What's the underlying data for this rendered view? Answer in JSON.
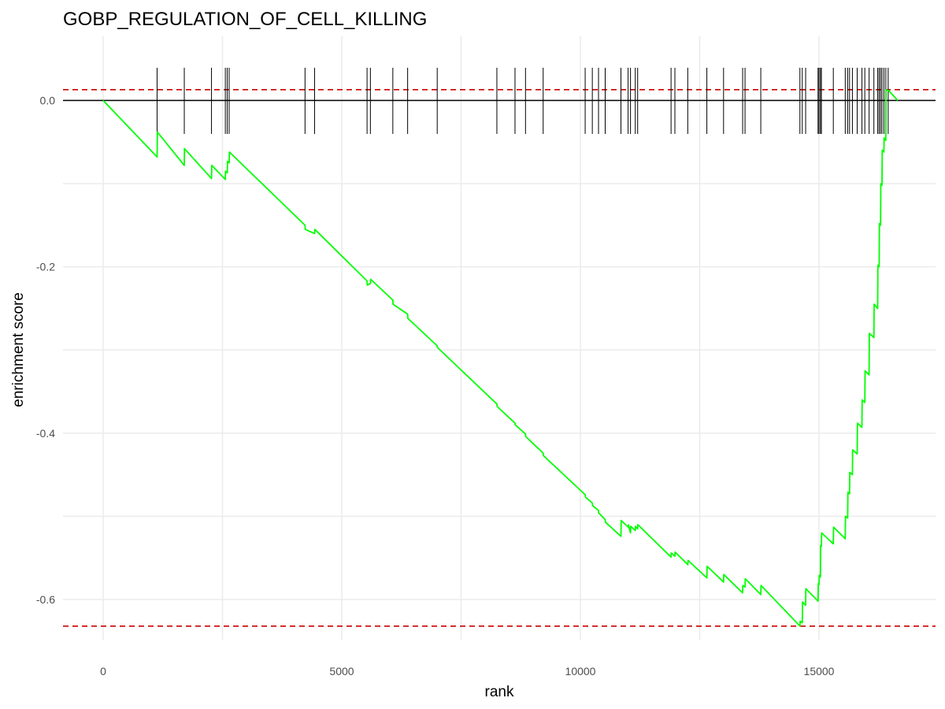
{
  "chart_data": {
    "type": "line",
    "title": "GOBP_REGULATION_OF_CELL_KILLING",
    "xlabel": "rank",
    "ylabel": "enrichment score",
    "xlim": [
      -1000,
      17500
    ],
    "ylim": [
      -0.65,
      0.08
    ],
    "x_ticks": [
      0,
      5000,
      10000,
      15000
    ],
    "x_tick_labels": [
      "0",
      "5000",
      "10000",
      "15000"
    ],
    "y_ticks": [
      0.0,
      -0.2,
      -0.4,
      -0.6
    ],
    "y_tick_labels": [
      "0.0",
      "-0.2",
      "-0.4",
      "-0.6"
    ],
    "grid": true,
    "legend": "none",
    "colors": {
      "curve": "#00ff00",
      "threshold": "#cc0000",
      "zero_line": "#000000",
      "hits": "#000000"
    },
    "reference_lines": {
      "zero": 0.0,
      "upper_dashed": 0.013,
      "lower_dashed": -0.632
    },
    "hit_ranks": [
      1130,
      1700,
      2270,
      2560,
      2600,
      2640,
      4230,
      4430,
      5530,
      5600,
      6070,
      6380,
      7000,
      8250,
      8630,
      8850,
      9220,
      10100,
      10250,
      10380,
      10520,
      10850,
      11000,
      11050,
      11150,
      11200,
      11900,
      11980,
      12250,
      12650,
      13000,
      13400,
      13450,
      13780,
      14600,
      14650,
      14720,
      14980,
      15000,
      15030,
      15050,
      15300,
      15550,
      15600,
      15640,
      15700,
      15800,
      15900,
      15960,
      16050,
      16150,
      16230,
      16260,
      16290,
      16320,
      16360,
      16400,
      16450
    ],
    "series": [
      {
        "x": [
          0,
          1130,
          1135,
          1700,
          1705,
          2270,
          2275,
          2560,
          2565,
          2600,
          2605,
          2640,
          2645,
          4230,
          4235,
          4430,
          4435,
          5530,
          5535,
          5600,
          5605,
          6070,
          6075,
          6380,
          6385,
          7000,
          7005,
          8250,
          8255,
          8630,
          8635,
          8850,
          8855,
          9220,
          9225,
          10100,
          10105,
          10250,
          10255,
          10380,
          10385,
          10520,
          10525,
          10850,
          10855,
          11000,
          11005,
          11050,
          11055,
          11150,
          11155,
          11200,
          11205,
          11900,
          11905,
          11980,
          11985,
          12250,
          12255,
          12650,
          12655,
          13000,
          13005,
          13400,
          13405,
          13450,
          13455,
          13780,
          13785,
          14600,
          14605,
          14650,
          14655,
          14720,
          14725,
          14980,
          14985,
          15000,
          15005,
          15030,
          15035,
          15050,
          15055,
          15300,
          15305,
          15550,
          15555,
          15600,
          15605,
          15640,
          15645,
          15700,
          15705,
          15800,
          15805,
          15900,
          15905,
          15960,
          15965,
          16050,
          16055,
          16150,
          16155,
          16230,
          16235,
          16260,
          16265,
          16290,
          16295,
          16320,
          16325,
          16360,
          16365,
          16400,
          16405,
          16450,
          16455,
          16650
        ],
        "y": [
          0.0,
          -0.068,
          -0.038,
          -0.078,
          -0.058,
          -0.094,
          -0.078,
          -0.095,
          -0.085,
          -0.087,
          -0.073,
          -0.075,
          -0.062,
          -0.15,
          -0.155,
          -0.16,
          -0.155,
          -0.217,
          -0.222,
          -0.22,
          -0.215,
          -0.24,
          -0.245,
          -0.257,
          -0.262,
          -0.295,
          -0.297,
          -0.365,
          -0.368,
          -0.388,
          -0.39,
          -0.401,
          -0.404,
          -0.424,
          -0.427,
          -0.474,
          -0.477,
          -0.484,
          -0.487,
          -0.493,
          -0.496,
          -0.504,
          -0.507,
          -0.524,
          -0.505,
          -0.513,
          -0.51,
          -0.52,
          -0.512,
          -0.517,
          -0.512,
          -0.515,
          -0.51,
          -0.549,
          -0.544,
          -0.548,
          -0.543,
          -0.558,
          -0.553,
          -0.574,
          -0.56,
          -0.579,
          -0.57,
          -0.592,
          -0.583,
          -0.585,
          -0.575,
          -0.594,
          -0.583,
          -0.632,
          -0.626,
          -0.628,
          -0.603,
          -0.607,
          -0.587,
          -0.602,
          -0.581,
          -0.582,
          -0.571,
          -0.573,
          -0.535,
          -0.536,
          -0.52,
          -0.533,
          -0.513,
          -0.527,
          -0.5,
          -0.502,
          -0.471,
          -0.473,
          -0.447,
          -0.45,
          -0.42,
          -0.425,
          -0.388,
          -0.393,
          -0.36,
          -0.363,
          -0.325,
          -0.33,
          -0.28,
          -0.285,
          -0.245,
          -0.25,
          -0.198,
          -0.2,
          -0.148,
          -0.15,
          -0.1,
          -0.102,
          -0.06,
          -0.062,
          -0.045,
          -0.048,
          0.013,
          0.012,
          0.012,
          0.0
        ]
      }
    ]
  }
}
